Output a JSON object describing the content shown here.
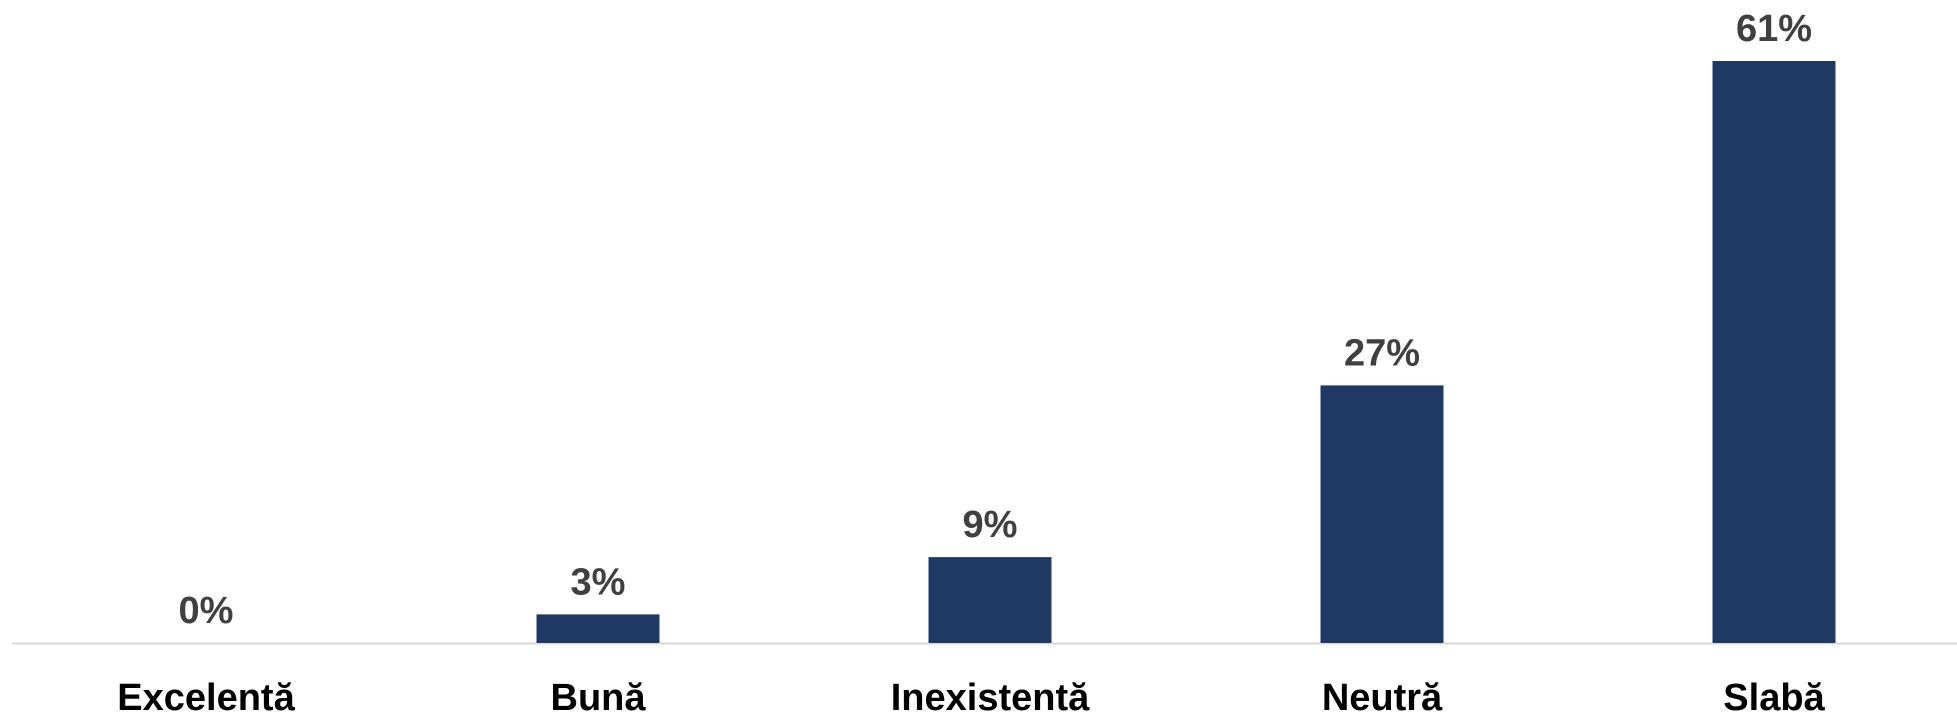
{
  "chart_data": {
    "type": "bar",
    "title": "",
    "xlabel": "",
    "ylabel": "",
    "categories": [
      "Excelentă",
      "Bună",
      "Inexistentă",
      "Neutră",
      "Slabă"
    ],
    "values": [
      0,
      3,
      9,
      27,
      61
    ],
    "value_labels": [
      "0%",
      "3%",
      "9%",
      "27%",
      "61%"
    ],
    "ylim": [
      0,
      61
    ],
    "grid": false,
    "legend": "none",
    "colors": {
      "bar": "#203864",
      "axis": "#d9d9d9",
      "value_label": "#404040",
      "category_label": "#000000"
    }
  }
}
